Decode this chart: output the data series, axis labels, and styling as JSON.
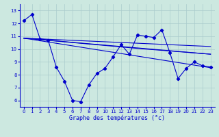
{
  "title": "Graphe des températures (°c)",
  "bg_color": "#cce8e0",
  "grid_color": "#aacccc",
  "line_color": "#0000cc",
  "ylim": [
    5.5,
    13.5
  ],
  "xlim": [
    -0.5,
    23.5
  ],
  "yticks": [
    6,
    7,
    8,
    9,
    10,
    11,
    12,
    13
  ],
  "xticks": [
    0,
    1,
    2,
    3,
    4,
    5,
    6,
    7,
    8,
    9,
    10,
    11,
    12,
    13,
    14,
    15,
    16,
    17,
    18,
    19,
    20,
    21,
    22,
    23
  ],
  "series_main": {
    "x": [
      0,
      1,
      2,
      3,
      4,
      5,
      6,
      7,
      8,
      9,
      10,
      11,
      12,
      13,
      14,
      15,
      16,
      17,
      18,
      19,
      20,
      21,
      22,
      23
    ],
    "y": [
      12.2,
      12.7,
      10.8,
      10.7,
      8.6,
      7.5,
      6.0,
      5.9,
      7.2,
      8.1,
      8.5,
      9.4,
      10.35,
      9.6,
      11.1,
      11.0,
      10.9,
      11.5,
      9.7,
      7.7,
      8.5,
      9.0,
      8.7,
      8.6
    ]
  },
  "trend_lines": [
    {
      "x": [
        0,
        23
      ],
      "y": [
        10.85,
        10.2
      ]
    },
    {
      "x": [
        0,
        23
      ],
      "y": [
        10.85,
        9.6
      ]
    },
    {
      "x": [
        0,
        14,
        23
      ],
      "y": [
        10.85,
        10.05,
        9.6
      ]
    },
    {
      "x": [
        0,
        23
      ],
      "y": [
        10.85,
        8.55
      ]
    }
  ]
}
